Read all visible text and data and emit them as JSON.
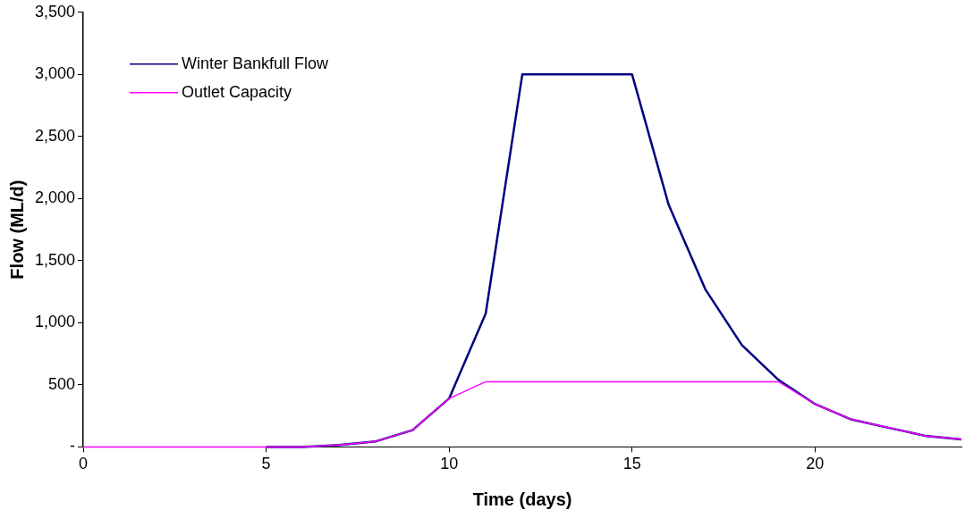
{
  "chart_data": {
    "type": "line",
    "xlabel": "Time (days)",
    "ylabel": "Flow (ML/d)",
    "x": [
      0,
      1,
      2,
      3,
      4,
      5,
      6,
      7,
      8,
      9,
      10,
      11,
      12,
      13,
      14,
      15,
      16,
      17,
      18,
      19,
      20,
      21,
      22,
      23,
      24
    ],
    "series": [
      {
        "name": "Winter Bankfull Flow",
        "color": "#000080",
        "values": [
          null,
          null,
          null,
          null,
          null,
          0,
          0,
          15,
          45,
          135,
          390,
          1075,
          3000,
          3000,
          3000,
          3000,
          1950,
          1270,
          820,
          540,
          345,
          220,
          155,
          90,
          60
        ]
      },
      {
        "name": "Outlet Capacity",
        "color": "#ff00ff",
        "values": [
          0,
          0,
          0,
          0,
          0,
          0,
          0,
          15,
          45,
          135,
          390,
          525,
          525,
          525,
          525,
          525,
          525,
          525,
          525,
          525,
          345,
          220,
          155,
          90,
          60
        ]
      }
    ],
    "xlim": [
      0,
      24
    ],
    "xticks": [
      0,
      5,
      10,
      15,
      20
    ],
    "ylim": [
      0,
      3500
    ],
    "yticks": [
      {
        "value": 0,
        "label": "-"
      },
      500,
      {
        "value": 1000,
        "label": "1,000"
      },
      {
        "value": 1500,
        "label": "1,500"
      },
      {
        "value": 2000,
        "label": "2,000"
      },
      {
        "value": 2500,
        "label": "2,500"
      },
      {
        "value": 3000,
        "label": "3,000"
      },
      {
        "value": 3500,
        "label": "3,500"
      }
    ],
    "grid": false,
    "legend": "top left",
    "marker": "none",
    "line_style": "solid"
  }
}
